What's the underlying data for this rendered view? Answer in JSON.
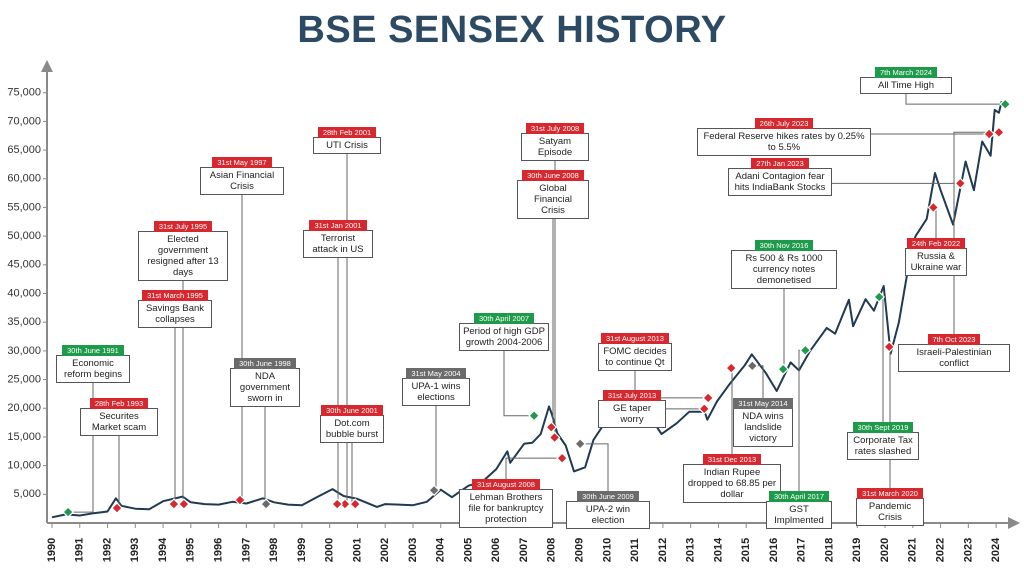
{
  "chart_data": {
    "type": "line",
    "title": "BSE SENSEX HISTORY",
    "color": "#1f3a52",
    "x": [
      1990.0,
      1990.5,
      1991.0,
      1991.5,
      1992.0,
      1992.3,
      1992.5,
      1993.0,
      1993.5,
      1994.0,
      1994.7,
      1995.0,
      1995.5,
      1996.0,
      1996.5,
      1997.0,
      1997.6,
      1998.0,
      1998.5,
      1999.0,
      1999.5,
      2000.1,
      2000.5,
      2001.0,
      2001.7,
      2002.0,
      2002.5,
      2003.0,
      2003.5,
      2004.0,
      2004.4,
      2005.0,
      2005.5,
      2006.0,
      2006.4,
      2006.5,
      2007.0,
      2007.3,
      2007.6,
      2007.9,
      2008.0,
      2008.2,
      2008.5,
      2008.8,
      2009.2,
      2009.5,
      2009.9,
      2010.5,
      2010.85,
      2011.5,
      2011.95,
      2012.5,
      2012.95,
      2013.5,
      2013.6,
      2013.95,
      2014.4,
      2014.95,
      2015.2,
      2015.7,
      2016.1,
      2016.6,
      2016.9,
      2017.3,
      2017.9,
      2018.2,
      2018.7,
      2018.85,
      2019.3,
      2019.6,
      2019.95,
      2020.2,
      2020.5,
      2020.95,
      2021.1,
      2021.5,
      2021.8,
      2022.0,
      2022.45,
      2022.9,
      2023.2,
      2023.5,
      2023.8,
      2023.95,
      2024.1,
      2024.2
    ],
    "values": [
      1000,
      1500,
      1300,
      1700,
      2000,
      4300,
      3000,
      2500,
      2400,
      3800,
      4600,
      3600,
      3300,
      3200,
      3700,
      3400,
      4300,
      3600,
      3200,
      3100,
      4400,
      5900,
      4700,
      4200,
      2800,
      3300,
      3200,
      3100,
      3700,
      5800,
      4500,
      6500,
      7200,
      9400,
      12500,
      10500,
      13800,
      14000,
      15500,
      20300,
      19000,
      15600,
      13500,
      9000,
      9700,
      14500,
      17400,
      17700,
      20900,
      18800,
      15500,
      17400,
      19400,
      19400,
      18000,
      21200,
      24200,
      27500,
      29400,
      26200,
      23000,
      28000,
      26600,
      30000,
      34000,
      33000,
      38900,
      34300,
      39000,
      37000,
      41300,
      29500,
      35000,
      47700,
      50000,
      53000,
      61000,
      58000,
      52000,
      63000,
      58000,
      66500,
      64000,
      72000,
      71500,
      73500
    ],
    "xlim": [
      1990,
      2024.5
    ],
    "xticks": [
      1990,
      1991,
      1992,
      1993,
      1994,
      1995,
      1996,
      1997,
      1998,
      1999,
      2000,
      2001,
      2002,
      2003,
      2004,
      2005,
      2006,
      2007,
      2008,
      2009,
      2010,
      2011,
      2012,
      2013,
      2014,
      2015,
      2016,
      2017,
      2018,
      2019,
      2020,
      2021,
      2022,
      2023,
      2024
    ],
    "ylim": [
      0,
      80000
    ],
    "yticks": [
      {
        "value": 5000,
        "label": "5,000"
      },
      {
        "value": 10000,
        "label": "10,000"
      },
      {
        "value": 15000,
        "label": "15,000"
      },
      {
        "value": 20000,
        "label": "20,000"
      },
      {
        "value": 25000,
        "label": "25,000"
      },
      {
        "value": 30000,
        "label": "30,000"
      },
      {
        "value": 35000,
        "label": "35,000"
      },
      {
        "value": 40000,
        "label": "40,000"
      },
      {
        "value": 45000,
        "label": "45,000"
      },
      {
        "value": 50000,
        "label": "50,000"
      },
      {
        "value": 55000,
        "label": "55,000"
      },
      {
        "value": 60000,
        "label": "60,000"
      },
      {
        "value": 65000,
        "label": "65,000"
      },
      {
        "value": 70000,
        "label": "70,000"
      },
      {
        "value": 75000,
        "label": "75,000"
      }
    ],
    "annotations": [
      {
        "date": "30th June 1991",
        "text": "Economic reform begins",
        "color": "#1e9a4b",
        "x": 1990.58,
        "y": 1900
      },
      {
        "date": "28th Feb 1993",
        "text": "Securites Market scam",
        "color": "#d7282f",
        "x": 1992.34,
        "y": 2600
      },
      {
        "date": "31st March 1995",
        "text": "Savings Bank collapses",
        "color": "#d7282f",
        "x": 1994.39,
        "y": 3300
      },
      {
        "date": "31st July 1995",
        "text": "Elected government resigned after 13 days",
        "color": "#d7282f",
        "x": 1994.75,
        "y": 3300
      },
      {
        "date": "31st May 1997",
        "text": "Asian Financial Crisis",
        "color": "#d7282f",
        "x": 1996.77,
        "y": 4000
      },
      {
        "date": "30th June 1998",
        "text": "NDA government sworn in",
        "color": "#6b6b6b",
        "x": 1997.71,
        "y": 3300
      },
      {
        "date": "28th Feb 2001",
        "text": "UTI Crisis",
        "color": "#d7282f",
        "x": 2000.55,
        "y": 3300
      },
      {
        "date": "31st Jan 2001",
        "text": "Terrorist attack in US",
        "color": "#d7282f",
        "x": 2000.27,
        "y": 3300
      },
      {
        "date": "30th June 2001",
        "text": "Dot.com bubble burst",
        "color": "#d7282f",
        "x": 2000.92,
        "y": 3300
      },
      {
        "date": "31st May 2004",
        "text": "UPA-1 wins elections",
        "color": "#6b6b6b",
        "x": 2003.76,
        "y": 5700
      },
      {
        "date": "31st August 2008",
        "text": "Lehman Brothers file for bankruptcy protection",
        "color": "#d7282f",
        "x": 2008.37,
        "y": 11300
      },
      {
        "date": "30th April 2007",
        "text": "Period of high GDP growth 2004-2006",
        "color": "#1e9a4b",
        "x": 2007.36,
        "y": 18700
      },
      {
        "date": "31st July 2008",
        "text": "Satyam Episode",
        "color": "#d7282f",
        "x": 2008.1,
        "y": 14900
      },
      {
        "date": "30th June 2008",
        "text": "Global Financial Crisis",
        "color": "#d7282f",
        "x": 2007.98,
        "y": 16700
      },
      {
        "date": "30th June 2009",
        "text": "UPA-2 win election",
        "color": "#6b6b6b",
        "x": 2009.02,
        "y": 13800
      },
      {
        "date": "31st August 2013",
        "text": "FOMC decides to continue Qt",
        "color": "#d7282f",
        "x": 2013.63,
        "y": 21800
      },
      {
        "date": "31st July 2013",
        "text": "GE taper worry",
        "color": "#d7282f",
        "x": 2013.49,
        "y": 19900
      },
      {
        "date": "31st Dec 2013",
        "text": "Indian Rupee dropped to 68.85 per dollar",
        "color": "#d7282f",
        "x": 2014.46,
        "y": 27000
      },
      {
        "date": "31st May 2014",
        "text": "NDA wins landslide victory",
        "color": "#6b6b6b",
        "x": 2015.22,
        "y": 27400
      },
      {
        "date": "30th Nov 2016",
        "text": "Rs 500 & Rs 1000 currency notes demonetised",
        "color": "#1e9a4b",
        "x": 2016.33,
        "y": 26800
      },
      {
        "date": "30th April 2017",
        "text": "GST Implmented",
        "color": "#1e9a4b",
        "x": 2017.13,
        "y": 30100
      },
      {
        "date": "30th Sept 2019",
        "text": "Corporate Tax rates slashed",
        "color": "#1e9a4b",
        "x": 2019.79,
        "y": 39400
      },
      {
        "date": "31st March 2020",
        "text": "Pandemic Crisis",
        "color": "#d7282f",
        "x": 2020.15,
        "y": 30700
      },
      {
        "date": "24th Feb 2022",
        "text": "Russia & Ukraine war",
        "color": "#d7282f",
        "x": 2021.74,
        "y": 55000
      },
      {
        "date": "27th Jan 2023",
        "text": "Adani Contagion fear hits IndiaBank Stocks",
        "color": "#d7282f",
        "x": 2022.71,
        "y": 59200
      },
      {
        "date": "26th July 2023",
        "text": "Federal Reserve hikes rates by 0.25% to 5.5%",
        "color": "#d7282f",
        "x": 2023.75,
        "y": 67800
      },
      {
        "date": "7th Oct 2023",
        "text": "Israeli-Palestinian conflict",
        "color": "#d7282f",
        "x": 2024.1,
        "y": 68100
      },
      {
        "date": "7th March 2024",
        "text": "All Time High",
        "color": "#1e9a4b",
        "x": 2024.33,
        "y": 73000
      }
    ]
  }
}
